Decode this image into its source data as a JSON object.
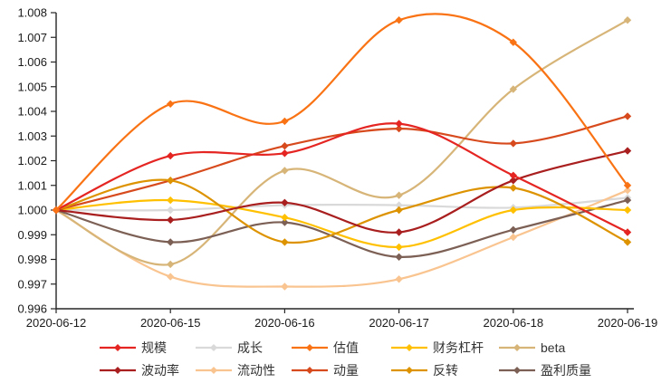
{
  "chart_data": {
    "type": "line",
    "title": "",
    "xlabel": "",
    "ylabel": "",
    "x": [
      "2020-06-12",
      "2020-06-15",
      "2020-06-16",
      "2020-06-17",
      "2020-06-18",
      "2020-06-19"
    ],
    "yticks": [
      "0.996",
      "0.997",
      "0.998",
      "0.999",
      "1.000",
      "1.001",
      "1.002",
      "1.003",
      "1.004",
      "1.005",
      "1.006",
      "1.007",
      "1.008"
    ],
    "ylim": [
      0.996,
      1.008
    ],
    "grid": false,
    "marker": "diamond",
    "line_style": "smooth",
    "legend_position": "bottom",
    "axis_color": "#262626",
    "series": [
      {
        "name": "规模",
        "color": "#e42522",
        "values": [
          1.0,
          1.0022,
          1.0023,
          1.0035,
          1.0014,
          0.9991
        ]
      },
      {
        "name": "成长",
        "color": "#d9d9d9",
        "values": [
          1.0,
          1.0,
          1.0002,
          1.0002,
          1.0001,
          1.0005
        ]
      },
      {
        "name": "估值",
        "color": "#f97314",
        "values": [
          1.0,
          1.0043,
          1.0036,
          1.0077,
          1.0068,
          1.001
        ]
      },
      {
        "name": "财务杠杆",
        "color": "#ffc000",
        "values": [
          1.0,
          1.0004,
          0.9997,
          0.9985,
          1.0,
          1.0
        ]
      },
      {
        "name": "beta",
        "color": "#d7b578",
        "values": [
          1.0,
          0.9978,
          1.0016,
          1.0006,
          1.0049,
          1.0077
        ]
      },
      {
        "name": "波动率",
        "color": "#a91e1e",
        "values": [
          1.0,
          0.9996,
          1.0003,
          0.9991,
          1.0012,
          1.0024
        ]
      },
      {
        "name": "流动性",
        "color": "#f9c48f",
        "values": [
          1.0,
          0.9973,
          0.9969,
          0.9972,
          0.9989,
          1.0008
        ]
      },
      {
        "name": "动量",
        "color": "#d74a1d",
        "values": [
          1.0,
          1.0012,
          1.0026,
          1.0033,
          1.0027,
          1.0038
        ]
      },
      {
        "name": "反转",
        "color": "#dd9300",
        "values": [
          1.0,
          1.0012,
          0.9987,
          1.0,
          1.0009,
          0.9987
        ]
      },
      {
        "name": "盈利质量",
        "color": "#7c6055",
        "values": [
          1.0,
          0.9987,
          0.9995,
          0.9981,
          0.9992,
          1.0004
        ]
      }
    ]
  }
}
